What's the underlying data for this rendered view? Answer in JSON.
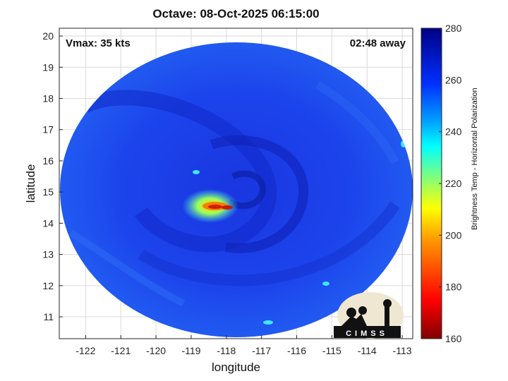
{
  "title": "Octave: 08-Oct-2025 06:15:00",
  "vmax_label": "Vmax: 35 kts",
  "time_label": "02:48 away",
  "xlabel": "longitude",
  "ylabel": "latitude",
  "colorbar_label": "Brightness Temp - Horizontal Polarization",
  "logo_text": "CIMSS",
  "chart_data": {
    "type": "heatmap",
    "xlim": [
      -122.75,
      -112.7
    ],
    "ylim": [
      10.3,
      20.25
    ],
    "xticks": [
      -122,
      -121,
      -120,
      -119,
      -118,
      -117,
      -116,
      -115,
      -114,
      -113
    ],
    "yticks": [
      11,
      12,
      13,
      14,
      15,
      16,
      17,
      18,
      19,
      20
    ],
    "colorbar": {
      "min": 160,
      "max": 280,
      "ticks": [
        160,
        180,
        200,
        220,
        240,
        260,
        280
      ]
    },
    "grid": true,
    "storm_center": {
      "lon": -117.0,
      "lat": 15.3
    },
    "cold_core": {
      "lon": -118.3,
      "lat": 14.5,
      "min_temp": 180
    }
  }
}
